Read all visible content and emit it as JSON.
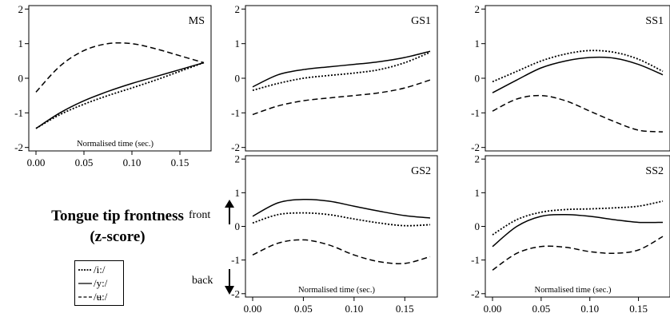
{
  "ylabel": [
    "Tongue tip frontness",
    "(z-score)"
  ],
  "front_label": "front",
  "back_label": "back",
  "legend": [
    {
      "label": "/i:/",
      "style": "dotted"
    },
    {
      "label": "/y:/",
      "style": "solid"
    },
    {
      "label": "/ʉ:/",
      "style": "dashed"
    }
  ],
  "chart_data": [
    {
      "type": "line",
      "panel_label": "MS",
      "xlabel": "Normalised time (sec.)",
      "xlim": [
        0,
        0.175
      ],
      "ylim": [
        -2.1,
        2.1
      ],
      "xticks": [
        "0.00",
        "0.05",
        "0.10",
        "0.15"
      ],
      "yticks": [
        "-2",
        "-1",
        "0",
        "1",
        "2"
      ],
      "x": [
        0.0,
        0.025,
        0.05,
        0.075,
        0.1,
        0.125,
        0.15,
        0.175
      ],
      "series": [
        {
          "name": "/i:/",
          "style": "dotted",
          "values": [
            -1.45,
            -1.05,
            -0.75,
            -0.5,
            -0.28,
            -0.05,
            0.2,
            0.45
          ]
        },
        {
          "name": "/y:/",
          "style": "solid",
          "values": [
            -1.45,
            -1.0,
            -0.65,
            -0.38,
            -0.15,
            0.05,
            0.25,
            0.45
          ]
        },
        {
          "name": "/ʉ:/",
          "style": "dashed",
          "values": [
            -0.4,
            0.35,
            0.8,
            1.0,
            1.0,
            0.85,
            0.65,
            0.45
          ]
        }
      ]
    },
    {
      "type": "line",
      "panel_label": "GS1",
      "xlabel": "",
      "xlim": [
        0,
        0.175
      ],
      "ylim": [
        -2.1,
        2.1
      ],
      "xticks": [],
      "yticks": [
        "-2",
        "-1",
        "0",
        "1",
        "2"
      ],
      "x": [
        0.0,
        0.025,
        0.05,
        0.075,
        0.1,
        0.125,
        0.15,
        0.175
      ],
      "series": [
        {
          "name": "/i:/",
          "style": "dotted",
          "values": [
            -0.35,
            -0.15,
            0.0,
            0.08,
            0.15,
            0.25,
            0.45,
            0.75
          ]
        },
        {
          "name": "/y:/",
          "style": "solid",
          "values": [
            -0.25,
            0.1,
            0.25,
            0.33,
            0.4,
            0.48,
            0.6,
            0.78
          ]
        },
        {
          "name": "/ʉ:/",
          "style": "dashed",
          "values": [
            -1.05,
            -0.8,
            -0.65,
            -0.57,
            -0.5,
            -0.42,
            -0.28,
            -0.05
          ]
        }
      ]
    },
    {
      "type": "line",
      "panel_label": "SS1",
      "xlabel": "",
      "xlim": [
        0,
        0.175
      ],
      "ylim": [
        -2.1,
        2.1
      ],
      "xticks": [],
      "yticks": [
        "-2",
        "-1",
        "0",
        "1",
        "2"
      ],
      "x": [
        0.0,
        0.025,
        0.05,
        0.075,
        0.1,
        0.125,
        0.15,
        0.175
      ],
      "series": [
        {
          "name": "/i:/",
          "style": "dotted",
          "values": [
            -0.1,
            0.2,
            0.5,
            0.7,
            0.8,
            0.75,
            0.55,
            0.2
          ]
        },
        {
          "name": "/y:/",
          "style": "solid",
          "values": [
            -0.42,
            -0.05,
            0.3,
            0.5,
            0.6,
            0.58,
            0.4,
            0.1
          ]
        },
        {
          "name": "/ʉ:/",
          "style": "dashed",
          "values": [
            -0.95,
            -0.6,
            -0.5,
            -0.65,
            -0.95,
            -1.25,
            -1.5,
            -1.55
          ]
        }
      ]
    },
    {
      "type": "line",
      "panel_label": "GS2",
      "xlabel": "Normalised time (sec.)",
      "xlim": [
        0,
        0.175
      ],
      "ylim": [
        -2.1,
        2.1
      ],
      "xticks": [
        "0.00",
        "0.05",
        "0.10",
        "0.15"
      ],
      "yticks": [
        "-2",
        "-1",
        "0",
        "1",
        "2"
      ],
      "x": [
        0.0,
        0.025,
        0.05,
        0.075,
        0.1,
        0.125,
        0.15,
        0.175
      ],
      "series": [
        {
          "name": "/i:/",
          "style": "dotted",
          "values": [
            0.1,
            0.35,
            0.4,
            0.35,
            0.22,
            0.1,
            0.02,
            0.05
          ]
        },
        {
          "name": "/y:/",
          "style": "solid",
          "values": [
            0.3,
            0.7,
            0.8,
            0.75,
            0.6,
            0.45,
            0.32,
            0.25
          ]
        },
        {
          "name": "/ʉ:/",
          "style": "dashed",
          "values": [
            -0.85,
            -0.5,
            -0.4,
            -0.55,
            -0.85,
            -1.05,
            -1.1,
            -0.9
          ]
        }
      ]
    },
    {
      "type": "line",
      "panel_label": "SS2",
      "xlabel": "Normalised time (sec.)",
      "xlim": [
        0,
        0.175
      ],
      "ylim": [
        -2.1,
        2.1
      ],
      "xticks": [
        "0.00",
        "0.05",
        "0.10",
        "0.15"
      ],
      "yticks": [
        "-2",
        "-1",
        "0",
        "1",
        "2"
      ],
      "x": [
        0.0,
        0.025,
        0.05,
        0.075,
        0.1,
        0.125,
        0.15,
        0.175
      ],
      "series": [
        {
          "name": "/i:/",
          "style": "dotted",
          "values": [
            -0.25,
            0.2,
            0.42,
            0.5,
            0.52,
            0.55,
            0.6,
            0.75
          ]
        },
        {
          "name": "/y:/",
          "style": "solid",
          "values": [
            -0.6,
            0.0,
            0.3,
            0.35,
            0.3,
            0.2,
            0.12,
            0.12
          ]
        },
        {
          "name": "/ʉ:/",
          "style": "dashed",
          "values": [
            -1.3,
            -0.8,
            -0.6,
            -0.62,
            -0.75,
            -0.8,
            -0.7,
            -0.3
          ]
        }
      ]
    }
  ]
}
